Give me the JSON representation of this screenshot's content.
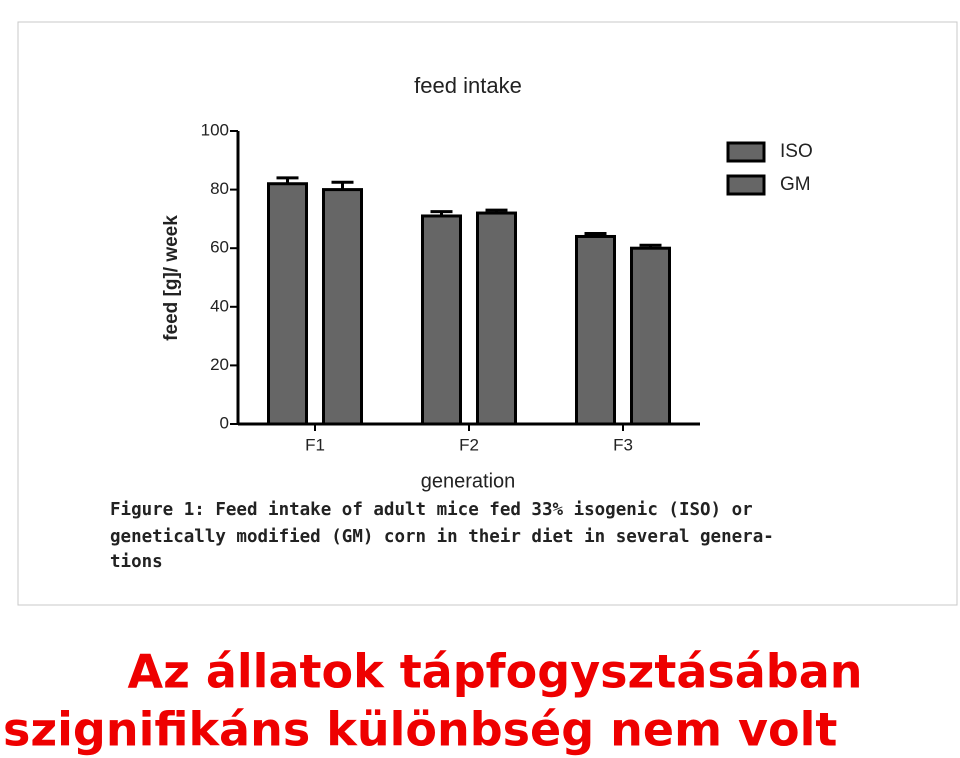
{
  "chart_data": {
    "type": "bar",
    "title": "feed intake",
    "x_label": "generation",
    "y_label": "feed [g]/ week",
    "categories": [
      "F1",
      "F2",
      "F3"
    ],
    "series": [
      {
        "name": "ISO",
        "color": "#666666",
        "values": [
          82,
          71,
          64
        ],
        "errors": [
          2,
          1.5,
          1
        ]
      },
      {
        "name": "GM",
        "color": "#666666",
        "values": [
          80,
          72,
          60
        ],
        "errors": [
          2.5,
          1,
          1
        ]
      }
    ],
    "ylim": [
      0,
      100
    ],
    "yticks": [
      0,
      20,
      40,
      60,
      80,
      100
    ],
    "grid": false,
    "legend": "top-right",
    "caption": [
      "Figure 1: Feed intake of adult mice fed 33% isogenic (ISO) or",
      "genetically modified (GM) corn in their diet in several genera-",
      "tions"
    ]
  },
  "slide_text": [
    "Az állatok tápfogysztásában",
    "szignifikáns különbség nem volt"
  ]
}
